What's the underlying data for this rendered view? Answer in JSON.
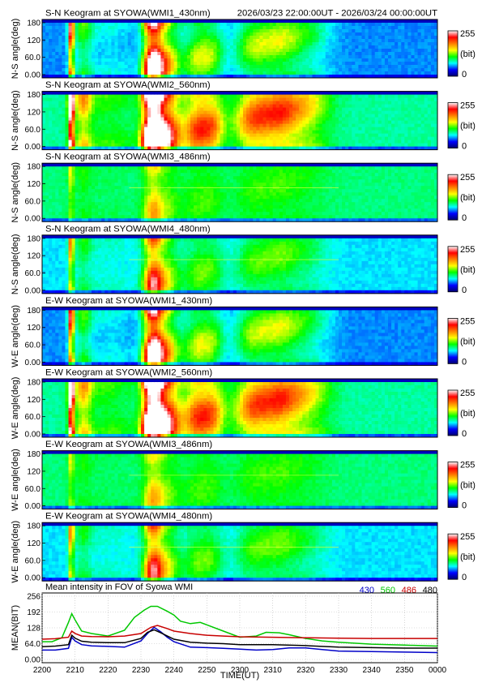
{
  "header": {
    "time_range": "2026/03/23 22:00:00UT - 2026/03/24 00:00:00UT"
  },
  "colorbar": {
    "max_label": "255",
    "unit_label": "(bit)",
    "min_label": "0",
    "stops": [
      "#00006e",
      "#0000ff",
      "#00ffff",
      "#00ff00",
      "#ffff00",
      "#ff8000",
      "#ff0000",
      "#ffffff"
    ]
  },
  "panels": [
    {
      "title": "S-N Keogram at SYOWA(WMI1_430nm)",
      "ylabel": "N-S angle(deg)",
      "channel": "430nm",
      "base": 0.22,
      "scale": 0.95,
      "bright_line": false
    },
    {
      "title": "S-N Keogram at SYOWA(WMI2_560nm)",
      "ylabel": "N-S angle(deg)",
      "channel": "560nm",
      "base": 0.34,
      "scale": 1.35,
      "bright_line": false
    },
    {
      "title": "S-N Keogram at SYOWA(WMI3_486nm)",
      "ylabel": "N-S angle(deg)",
      "channel": "486nm",
      "base": 0.36,
      "scale": 0.28,
      "bright_line": true
    },
    {
      "title": "S-N Keogram at SYOWA(WMI4_480nm)",
      "ylabel": "N-S angle(deg)",
      "channel": "480nm",
      "base": 0.27,
      "scale": 0.6,
      "bright_line": true
    },
    {
      "title": "E-W Keogram at SYOWA(WMI1_430nm)",
      "ylabel": "W-E angle(deg)",
      "channel": "430nm",
      "base": 0.22,
      "scale": 0.95,
      "bright_line": false
    },
    {
      "title": "E-W Keogram at SYOWA(WMI2_560nm)",
      "ylabel": "W-E angle(deg)",
      "channel": "560nm",
      "base": 0.34,
      "scale": 1.35,
      "bright_line": false
    },
    {
      "title": "E-W Keogram at SYOWA(WMI3_486nm)",
      "ylabel": "W-E angle(deg)",
      "channel": "486nm",
      "base": 0.36,
      "scale": 0.28,
      "bright_line": true
    },
    {
      "title": "E-W Keogram at SYOWA(WMI4_480nm)",
      "ylabel": "W-E angle(deg)",
      "channel": "480nm",
      "base": 0.27,
      "scale": 0.6,
      "bright_line": true
    }
  ],
  "keogram_ytick_labels": [
    "180",
    "120",
    "60.0",
    "0.00"
  ],
  "chart_data": {
    "type": "line",
    "title": "Mean intensity in FOV of Syowa WMI",
    "xlabel": "TIME(UT)",
    "ylabel": "MEAN(BIT)",
    "x_ticks": [
      "2200",
      "2210",
      "2220",
      "2230",
      "2240",
      "2250",
      "2300",
      "2310",
      "2320",
      "2330",
      "2340",
      "2350",
      "0000"
    ],
    "y_ticks": [
      "256",
      "192",
      "128",
      "64.0",
      "0.00"
    ],
    "ylim": [
      0,
      256
    ],
    "xlim_minutes": [
      0,
      120
    ],
    "grid": true,
    "legend": "top-right",
    "series": [
      {
        "name": "430",
        "color": "#0000c8",
        "x": [
          0,
          4,
          8,
          9,
          10,
          12,
          15,
          20,
          25,
          30,
          32,
          34,
          36,
          38,
          40,
          45,
          50,
          55,
          60,
          65,
          70,
          75,
          80,
          85,
          90,
          100,
          110,
          120
        ],
        "y": [
          38,
          38,
          45,
          90,
          75,
          60,
          55,
          53,
          50,
          75,
          105,
          130,
          112,
          90,
          72,
          50,
          48,
          45,
          42,
          38,
          40,
          47,
          47,
          40,
          34,
          32,
          30,
          28
        ]
      },
      {
        "name": "560",
        "color": "#00c800",
        "x": [
          0,
          3,
          6,
          8,
          9,
          10,
          12,
          15,
          20,
          25,
          28,
          31,
          33,
          35,
          38,
          40,
          42,
          45,
          48,
          50,
          55,
          60,
          65,
          68,
          72,
          75,
          80,
          85,
          90,
          100,
          110,
          120
        ],
        "y": [
          72,
          72,
          88,
          150,
          185,
          160,
          115,
          105,
          95,
          118,
          170,
          200,
          215,
          215,
          195,
          180,
          155,
          145,
          150,
          140,
          115,
          90,
          95,
          110,
          108,
          100,
          85,
          75,
          70,
          62,
          58,
          54
        ]
      },
      {
        "name": "486",
        "color": "#c80000",
        "x": [
          0,
          4,
          8,
          9,
          10,
          12,
          15,
          20,
          25,
          30,
          33,
          35,
          38,
          40,
          45,
          50,
          55,
          60,
          70,
          80,
          90,
          100,
          110,
          120
        ],
        "y": [
          82,
          84,
          90,
          115,
          105,
          95,
          93,
          92,
          95,
          105,
          130,
          138,
          125,
          115,
          105,
          98,
          95,
          92,
          90,
          88,
          86,
          85,
          85,
          85
        ]
      },
      {
        "name": "480",
        "color": "#000000",
        "x": [
          0,
          4,
          8,
          9,
          10,
          12,
          15,
          20,
          25,
          30,
          32,
          34,
          36,
          38,
          40,
          45,
          50,
          55,
          60,
          70,
          80,
          90,
          100,
          110,
          120
        ],
        "y": [
          52,
          54,
          60,
          98,
          86,
          74,
          70,
          68,
          68,
          85,
          110,
          120,
          108,
          95,
          82,
          70,
          66,
          64,
          60,
          60,
          56,
          50,
          48,
          46,
          46
        ]
      }
    ]
  }
}
